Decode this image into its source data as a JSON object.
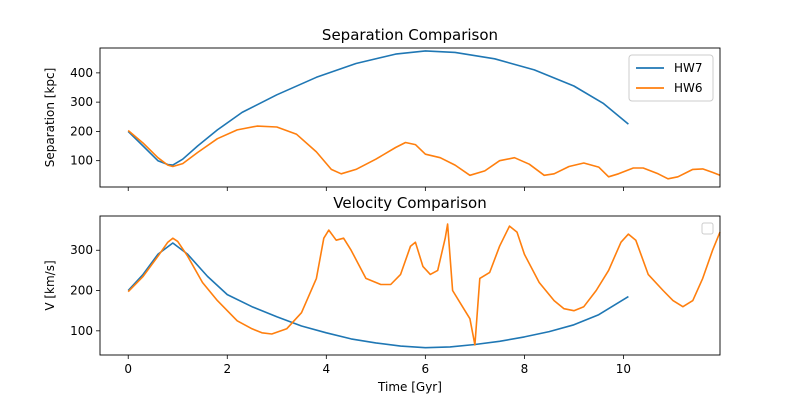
{
  "chart_data": [
    {
      "type": "line",
      "title": "Separation Comparison",
      "xlabel": "",
      "ylabel": "Separation [kpc]",
      "xlim": [
        -0.57,
        11.95
      ],
      "ylim": [
        10,
        485
      ],
      "xticks": [
        0,
        2,
        4,
        6,
        8,
        10
      ],
      "yticks": [
        100,
        200,
        300,
        400
      ],
      "show_x_tick_labels": false,
      "legend": "top-right",
      "series": [
        {
          "name": "HW7",
          "color": "#1f77b4",
          "points": [
            [
              0,
              200
            ],
            [
              0.3,
              150
            ],
            [
              0.6,
              100
            ],
            [
              0.8,
              87
            ],
            [
              0.9,
              85
            ],
            [
              1.1,
              105
            ],
            [
              1.4,
              150
            ],
            [
              1.8,
              205
            ],
            [
              2.3,
              265
            ],
            [
              3.0,
              325
            ],
            [
              3.8,
              385
            ],
            [
              4.6,
              432
            ],
            [
              5.4,
              464
            ],
            [
              6.0,
              475
            ],
            [
              6.6,
              470
            ],
            [
              7.4,
              448
            ],
            [
              8.2,
              410
            ],
            [
              9.0,
              355
            ],
            [
              9.6,
              295
            ],
            [
              10.1,
              225
            ]
          ]
        },
        {
          "name": "HW6",
          "color": "#ff7f0e",
          "points": [
            [
              0,
              203
            ],
            [
              0.3,
              160
            ],
            [
              0.6,
              110
            ],
            [
              0.8,
              85
            ],
            [
              0.9,
              80
            ],
            [
              1.1,
              90
            ],
            [
              1.4,
              128
            ],
            [
              1.8,
              175
            ],
            [
              2.2,
              205
            ],
            [
              2.6,
              218
            ],
            [
              3.0,
              215
            ],
            [
              3.4,
              190
            ],
            [
              3.8,
              130
            ],
            [
              4.1,
              70
            ],
            [
              4.3,
              55
            ],
            [
              4.6,
              70
            ],
            [
              5.0,
              105
            ],
            [
              5.4,
              145
            ],
            [
              5.6,
              162
            ],
            [
              5.8,
              155
            ],
            [
              6.0,
              122
            ],
            [
              6.3,
              110
            ],
            [
              6.6,
              85
            ],
            [
              6.9,
              50
            ],
            [
              7.2,
              65
            ],
            [
              7.5,
              100
            ],
            [
              7.8,
              110
            ],
            [
              8.1,
              88
            ],
            [
              8.4,
              50
            ],
            [
              8.6,
              55
            ],
            [
              8.9,
              80
            ],
            [
              9.2,
              92
            ],
            [
              9.5,
              78
            ],
            [
              9.7,
              45
            ],
            [
              9.9,
              55
            ],
            [
              10.2,
              75
            ],
            [
              10.4,
              75
            ],
            [
              10.7,
              55
            ],
            [
              10.9,
              38
            ],
            [
              11.1,
              45
            ],
            [
              11.4,
              70
            ],
            [
              11.6,
              72
            ],
            [
              11.8,
              60
            ],
            [
              11.95,
              50
            ]
          ]
        }
      ]
    },
    {
      "type": "line",
      "title": "Velocity Comparison",
      "xlabel": "Time [Gyr]",
      "ylabel": "V [km/s]",
      "xlim": [
        -0.57,
        11.95
      ],
      "ylim": [
        40,
        385
      ],
      "xticks": [
        0,
        2,
        4,
        6,
        8,
        10
      ],
      "yticks": [
        100,
        200,
        300
      ],
      "show_x_tick_labels": true,
      "legend": "top-right (empty)",
      "series": [
        {
          "color": "#1f77b4",
          "points": [
            [
              0,
              200
            ],
            [
              0.3,
              240
            ],
            [
              0.6,
              290
            ],
            [
              0.9,
              318
            ],
            [
              1.2,
              290
            ],
            [
              1.6,
              235
            ],
            [
              2.0,
              190
            ],
            [
              2.5,
              160
            ],
            [
              3.0,
              135
            ],
            [
              3.5,
              112
            ],
            [
              4.0,
              95
            ],
            [
              4.5,
              80
            ],
            [
              5.0,
              70
            ],
            [
              5.5,
              62
            ],
            [
              6.0,
              58
            ],
            [
              6.5,
              60
            ],
            [
              7.0,
              66
            ],
            [
              7.5,
              74
            ],
            [
              8.0,
              85
            ],
            [
              8.5,
              98
            ],
            [
              9.0,
              115
            ],
            [
              9.5,
              140
            ],
            [
              10.1,
              185
            ]
          ]
        },
        {
          "color": "#ff7f0e",
          "points": [
            [
              0,
              197
            ],
            [
              0.3,
              235
            ],
            [
              0.6,
              285
            ],
            [
              0.8,
              320
            ],
            [
              0.9,
              330
            ],
            [
              1.0,
              322
            ],
            [
              1.2,
              285
            ],
            [
              1.5,
              220
            ],
            [
              1.8,
              175
            ],
            [
              2.0,
              150
            ],
            [
              2.2,
              125
            ],
            [
              2.5,
              105
            ],
            [
              2.7,
              95
            ],
            [
              2.9,
              92
            ],
            [
              3.2,
              105
            ],
            [
              3.5,
              145
            ],
            [
              3.8,
              230
            ],
            [
              3.95,
              330
            ],
            [
              4.05,
              350
            ],
            [
              4.2,
              325
            ],
            [
              4.35,
              330
            ],
            [
              4.5,
              300
            ],
            [
              4.8,
              230
            ],
            [
              5.1,
              215
            ],
            [
              5.3,
              215
            ],
            [
              5.5,
              240
            ],
            [
              5.7,
              310
            ],
            [
              5.8,
              320
            ],
            [
              5.95,
              260
            ],
            [
              6.1,
              240
            ],
            [
              6.25,
              250
            ],
            [
              6.4,
              330
            ],
            [
              6.45,
              365
            ],
            [
              6.55,
              200
            ],
            [
              6.75,
              160
            ],
            [
              6.9,
              130
            ],
            [
              7.0,
              65
            ],
            [
              7.1,
              230
            ],
            [
              7.3,
              245
            ],
            [
              7.5,
              310
            ],
            [
              7.7,
              360
            ],
            [
              7.85,
              345
            ],
            [
              8.0,
              290
            ],
            [
              8.3,
              220
            ],
            [
              8.6,
              175
            ],
            [
              8.8,
              155
            ],
            [
              9.0,
              150
            ],
            [
              9.2,
              160
            ],
            [
              9.45,
              200
            ],
            [
              9.7,
              250
            ],
            [
              9.95,
              320
            ],
            [
              10.1,
              340
            ],
            [
              10.25,
              325
            ],
            [
              10.5,
              240
            ],
            [
              10.8,
              200
            ],
            [
              11.0,
              175
            ],
            [
              11.2,
              160
            ],
            [
              11.4,
              175
            ],
            [
              11.6,
              230
            ],
            [
              11.8,
              300
            ],
            [
              11.95,
              345
            ]
          ]
        }
      ]
    }
  ]
}
